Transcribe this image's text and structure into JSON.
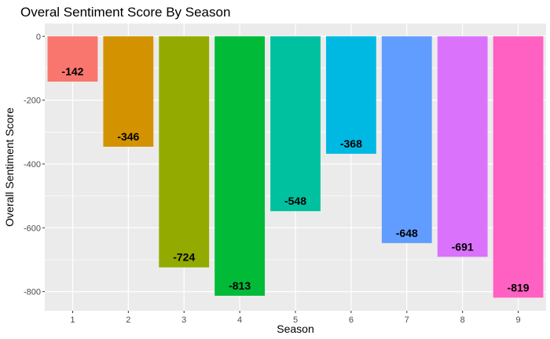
{
  "chart_data": {
    "type": "bar",
    "title": "Overal Sentiment Score By Season",
    "xlabel": "Season",
    "ylabel": "Overall Sentiment Score",
    "categories": [
      "1",
      "2",
      "3",
      "4",
      "5",
      "6",
      "7",
      "8",
      "9"
    ],
    "values": [
      -142,
      -346,
      -724,
      -813,
      -548,
      -368,
      -648,
      -691,
      -819
    ],
    "data_labels": [
      "-142",
      "-346",
      "-724",
      "-813",
      "-548",
      "-368",
      "-648",
      "-691",
      "-819"
    ],
    "colors": [
      "#F8766D",
      "#D39200",
      "#93AA00",
      "#00BA38",
      "#00C19F",
      "#00B9E3",
      "#619CFF",
      "#DB72FB",
      "#FF61C3"
    ],
    "yticks": [
      0,
      -200,
      -400,
      -600,
      -800
    ],
    "ytick_labels": [
      "0",
      "-200",
      "-400",
      "-600",
      "-800"
    ],
    "ylim": [
      -860,
      40
    ],
    "grid": true,
    "legend": "none",
    "background": "#EBEBEB"
  }
}
